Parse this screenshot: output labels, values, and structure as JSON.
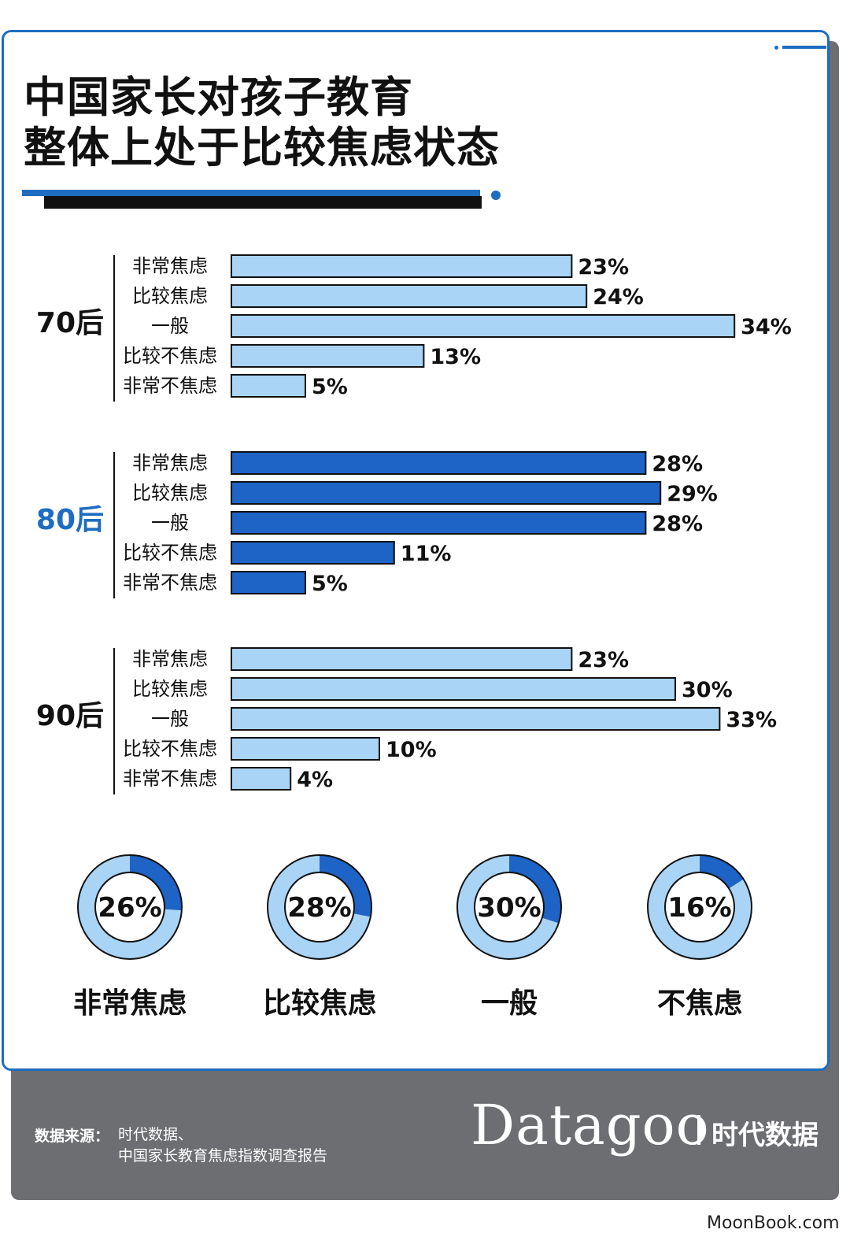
{
  "title": {
    "line1": "中国家长对孩子教育",
    "line2": "整体上处于比较焦虑状态"
  },
  "colors": {
    "accent": "#1e6dc0",
    "bar_light": "#a9d4f5",
    "bar_dark": "#1e63c6",
    "footer_bg": "#6d6e71"
  },
  "chart_data": [
    {
      "type": "bar",
      "orientation": "horizontal",
      "categories": [
        "非常焦虑",
        "比较焦虑",
        "一般",
        "比较不焦虑",
        "非常不焦虑"
      ],
      "series": [
        {
          "name": "70后",
          "values": [
            23,
            24,
            34,
            13,
            5
          ],
          "labels": [
            "23%",
            "24%",
            "34%",
            "13%",
            "5%"
          ],
          "color": "#a9d4f5"
        },
        {
          "name": "80后",
          "values": [
            28,
            29,
            28,
            11,
            5
          ],
          "labels": [
            "28%",
            "29%",
            "28%",
            "11%",
            "5%"
          ],
          "color": "#1e63c6"
        },
        {
          "name": "90后",
          "values": [
            23,
            30,
            33,
            10,
            4
          ],
          "labels": [
            "23%",
            "30%",
            "33%",
            "10%",
            "4%"
          ],
          "color": "#a9d4f5"
        }
      ],
      "value_unit": "%"
    },
    {
      "type": "pie",
      "style": "donut",
      "items": [
        {
          "label": "非常焦虑",
          "value": 26,
          "text": "26%"
        },
        {
          "label": "比较焦虑",
          "value": 28,
          "text": "28%"
        },
        {
          "label": "一般",
          "value": 30,
          "text": "30%"
        },
        {
          "label": "不焦虑",
          "value": 16,
          "text": "16%"
        }
      ]
    }
  ],
  "footer": {
    "source_label": "数据来源：",
    "source_line1": "时代数据、",
    "source_line2": "中国家长教育焦虑指数调查报告",
    "brand": "Datagoo",
    "brand_cn": "时代数据"
  },
  "watermark": "MoonBook.com"
}
